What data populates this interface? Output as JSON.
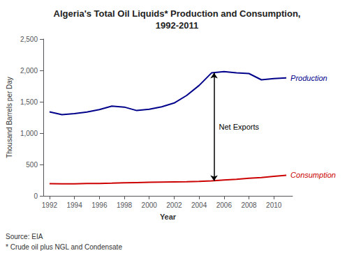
{
  "chart_data": {
    "type": "line",
    "title": "Algeria's Total Oil Liquids* Production and Consumption,\n1992-2011",
    "x_label": "Year",
    "y_label": "Thousand Barrels per Day",
    "x": [
      1992,
      1993,
      1994,
      1995,
      1996,
      1997,
      1998,
      1999,
      2000,
      2001,
      2002,
      2003,
      2004,
      2005,
      2006,
      2007,
      2008,
      2009,
      2010,
      2011
    ],
    "series": [
      {
        "name": "Production",
        "color": "#00008B",
        "values": [
          1340,
          1295,
          1310,
          1335,
          1375,
          1430,
          1415,
          1360,
          1380,
          1420,
          1480,
          1600,
          1760,
          1960,
          1980,
          1960,
          1950,
          1850,
          1870,
          1880
        ]
      },
      {
        "name": "Consumption",
        "color": "#CC0000",
        "values": [
          195,
          193,
          193,
          196,
          198,
          202,
          207,
          212,
          217,
          220,
          223,
          226,
          230,
          238,
          252,
          265,
          280,
          292,
          310,
          328
        ]
      }
    ],
    "xlim": [
      1991.5,
      2011.5
    ],
    "xticks": [
      1992,
      1994,
      1996,
      1998,
      2000,
      2002,
      2004,
      2006,
      2008,
      2010
    ],
    "ylim": [
      0,
      2500
    ],
    "yticks": [
      0,
      500,
      {
        "value": 1000,
        "label": "1,000"
      },
      {
        "value": 1500,
        "label": "1,500"
      },
      {
        "value": 2000,
        "label": "2,000"
      },
      {
        "value": 2500,
        "label": "2,500"
      }
    ],
    "grid": false,
    "annotations": [
      {
        "text": "Net Exports",
        "x": 2005.2,
        "y_start": 238,
        "y_end": 1960
      }
    ],
    "footnotes": [
      "Source: EIA",
      "* Crude oil plus NGL and Condensate"
    ]
  }
}
